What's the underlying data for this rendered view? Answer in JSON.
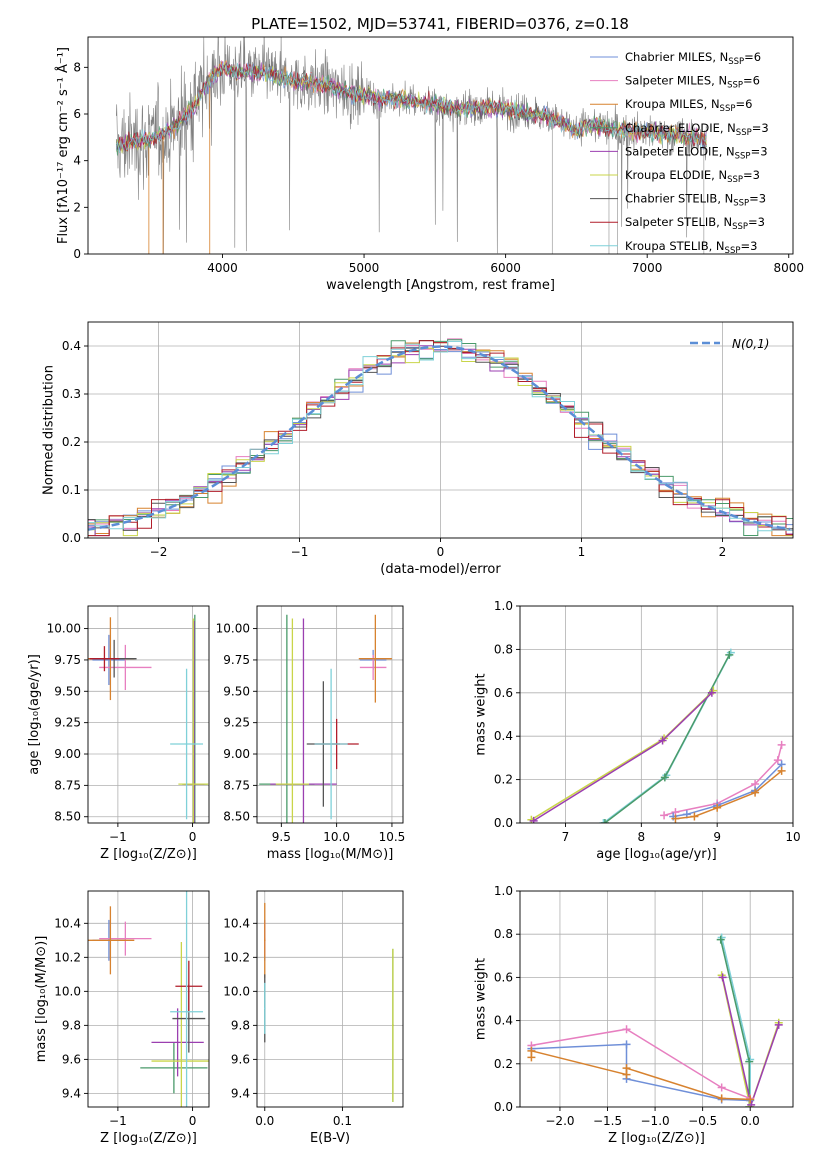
{
  "title": "PLATE=1502, MJD=53741, FIBERID=0376, z=0.18",
  "series": [
    {
      "name": "Chabrier MILES, N",
      "sub": "SSP",
      "suf": "=6",
      "color": "#6f8fd8"
    },
    {
      "name": "Salpeter MILES, N",
      "sub": "SSP",
      "suf": "=6",
      "color": "#e77fc0"
    },
    {
      "name": "Kroupa MILES, N",
      "sub": "SSP",
      "suf": "=6",
      "color": "#d7822f"
    },
    {
      "name": "Chabrier ELODIE, N",
      "sub": "SSP",
      "suf": "=3",
      "color": "#4a9a6a"
    },
    {
      "name": "Salpeter ELODIE, N",
      "sub": "SSP",
      "suf": "=3",
      "color": "#9b3fb0"
    },
    {
      "name": "Kroupa ELODIE, N",
      "sub": "SSP",
      "suf": "=3",
      "color": "#c9d54a"
    },
    {
      "name": "Chabrier STELIB, N",
      "sub": "SSP",
      "suf": "=3",
      "color": "#555555"
    },
    {
      "name": "Salpeter STELIB, N",
      "sub": "SSP",
      "suf": "=3",
      "color": "#b11d2a"
    },
    {
      "name": "Kroupa STELIB, N",
      "sub": "SSP",
      "suf": "=3",
      "color": "#7fd0d8"
    }
  ],
  "chart_data": [
    {
      "id": "spectrum",
      "type": "line",
      "xlabel": "wavelength [Angstrom, rest frame]",
      "ylabel": "Flux [fλ10⁻¹⁷ erg cm⁻² s⁻¹ Å⁻¹]",
      "xlim": [
        3050,
        8030
      ],
      "ylim": [
        0,
        9.3
      ],
      "xticks": [
        4000,
        5000,
        6000,
        7000,
        8000
      ],
      "yticks": [
        0,
        2,
        4,
        6,
        8
      ],
      "data_color": "#808080",
      "data_range": [
        3250,
        7420
      ],
      "continuum": {
        "x": [
          3250,
          3350,
          3500,
          3650,
          3800,
          3900,
          4000,
          4100,
          4300,
          4500,
          4700,
          4900,
          5100,
          5300,
          5500,
          5700,
          5900,
          6100,
          6300,
          6500,
          6600,
          6800,
          7000,
          7200,
          7400
        ],
        "y": [
          4.6,
          4.8,
          4.9,
          5.4,
          6.3,
          7.4,
          8.0,
          7.8,
          7.8,
          7.4,
          7.3,
          6.9,
          6.7,
          6.6,
          6.4,
          6.2,
          6.3,
          6.1,
          5.9,
          5.3,
          5.6,
          5.3,
          5.2,
          5.1,
          4.9
        ]
      },
      "grid": false,
      "legend": "top-right"
    },
    {
      "id": "residuals",
      "type": "histogram",
      "xlabel": "(data-model)/error",
      "ylabel": "Normed distribution",
      "xlim": [
        -2.5,
        2.5
      ],
      "ylim": [
        0,
        0.45
      ],
      "xticks": [
        -2,
        -1,
        0,
        1,
        2
      ],
      "yticks": [
        0.0,
        0.1,
        0.2,
        0.3,
        0.4
      ],
      "bin_width": 0.1,
      "gaussian_label": "N(0,1)",
      "gaussian_color": "#5b8ed6",
      "grid": true,
      "legend": "top-right"
    },
    {
      "id": "age_vs_Z",
      "type": "errorbar",
      "xlabel": "Z [log₁₀(Z/Z⊙)]",
      "ylabel": "age  [log₁₀(age/yr)]",
      "xlim": [
        -1.4,
        0.22
      ],
      "ylim": [
        8.45,
        10.18
      ],
      "xticks": [
        -1,
        0
      ],
      "yticks": [
        8.5,
        8.75,
        9.0,
        9.25,
        9.5,
        9.75,
        10.0
      ],
      "points": [
        {
          "s": 0,
          "x": -1.12,
          "y": 9.75,
          "dx": 0.22,
          "dy": 0.2
        },
        {
          "s": 1,
          "x": -0.9,
          "y": 9.69,
          "dx": 0.35,
          "dy": 0.18
        },
        {
          "s": 2,
          "x": -1.1,
          "y": 9.76,
          "dx": 0.32,
          "dy": 0.33
        },
        {
          "s": 3,
          "x": 0.03,
          "y": 8.76,
          "dx": 0.17,
          "dy": 1.35
        },
        {
          "s": 4,
          "x": 0.02,
          "y": 8.76,
          "dx": 0.14,
          "dy": 1.3
        },
        {
          "s": 5,
          "x": 0.01,
          "y": 8.76,
          "dx": 0.2,
          "dy": 1.32
        },
        {
          "s": 6,
          "x": -1.05,
          "y": 9.76,
          "dx": 0.3,
          "dy": 0.15
        },
        {
          "s": 7,
          "x": -1.18,
          "y": 9.76,
          "dx": 0.2,
          "dy": 0.1
        },
        {
          "s": 8,
          "x": -0.08,
          "y": 9.08,
          "dx": 0.22,
          "dy": 0.6
        }
      ],
      "grid": true
    },
    {
      "id": "age_vs_mass",
      "type": "errorbar",
      "xlabel": "mass [log₁₀(M/M⊙)]",
      "ylabel": "",
      "xlim": [
        9.28,
        10.6
      ],
      "ylim": [
        8.45,
        10.18
      ],
      "xticks": [
        9.5,
        10.0,
        10.5
      ],
      "yticks": [
        8.5,
        8.75,
        9.0,
        9.25,
        9.5,
        9.75,
        10.0
      ],
      "points": [
        {
          "s": 0,
          "x": 10.33,
          "y": 9.75,
          "dx": 0.12,
          "dy": 0.08
        },
        {
          "s": 1,
          "x": 10.33,
          "y": 9.69,
          "dx": 0.12,
          "dy": 0.1
        },
        {
          "s": 2,
          "x": 10.35,
          "y": 9.76,
          "dx": 0.15,
          "dy": 0.35
        },
        {
          "s": 3,
          "x": 9.55,
          "y": 8.76,
          "dx": 0.25,
          "dy": 1.35
        },
        {
          "s": 4,
          "x": 9.7,
          "y": 8.76,
          "dx": 0.3,
          "dy": 1.32
        },
        {
          "s": 5,
          "x": 9.6,
          "y": 8.76,
          "dx": 0.15,
          "dy": 1.32
        },
        {
          "s": 6,
          "x": 9.88,
          "y": 9.08,
          "dx": 0.15,
          "dy": 0.5
        },
        {
          "s": 7,
          "x": 10.0,
          "y": 9.08,
          "dx": 0.2,
          "dy": 0.2
        },
        {
          "s": 8,
          "x": 9.95,
          "y": 9.08,
          "dx": 0.15,
          "dy": 0.6
        }
      ],
      "grid": true
    },
    {
      "id": "weight_vs_age",
      "type": "line",
      "xlabel": "age  [log₁₀(age/yr)]",
      "ylabel": "mass weight",
      "xlim": [
        6.4,
        10.0
      ],
      "ylim": [
        0,
        1.0
      ],
      "xticks": [
        7,
        8,
        9,
        10
      ],
      "yticks": [
        0.0,
        0.2,
        0.4,
        0.6,
        0.8,
        1.0
      ],
      "lines": [
        {
          "s": 8,
          "x": [
            7.5,
            8.33,
            9.18
          ],
          "y": [
            0.0,
            0.22,
            0.785
          ]
        },
        {
          "s": 3,
          "x": [
            7.52,
            8.31,
            9.16
          ],
          "y": [
            0.0,
            0.21,
            0.775
          ]
        },
        {
          "s": 5,
          "x": [
            6.55,
            8.3,
            8.95
          ],
          "y": [
            0.015,
            0.39,
            0.61
          ]
        },
        {
          "s": 4,
          "x": [
            6.58,
            8.28,
            8.93
          ],
          "y": [
            0.01,
            0.38,
            0.6
          ]
        },
        {
          "s": 1,
          "x": [
            8.3,
            8.45,
            9.0,
            9.5,
            9.8,
            9.85
          ],
          "y": [
            0.035,
            0.05,
            0.09,
            0.18,
            0.29,
            0.36
          ]
        },
        {
          "s": 0,
          "x": [
            8.42,
            8.6,
            9.0,
            9.5,
            9.85
          ],
          "y": [
            0.03,
            0.04,
            0.08,
            0.15,
            0.27
          ]
        },
        {
          "s": 2,
          "x": [
            8.45,
            8.7,
            9.0,
            9.5,
            9.85
          ],
          "y": [
            0.02,
            0.03,
            0.07,
            0.14,
            0.24
          ]
        }
      ],
      "grid": true
    },
    {
      "id": "mass_vs_Z",
      "type": "errorbar",
      "xlabel": "Z [log₁₀(Z/Z⊙)]",
      "ylabel": "mass [log₁₀(M/M⊙)]",
      "xlim": [
        -1.4,
        0.22
      ],
      "ylim": [
        9.32,
        10.59
      ],
      "xticks": [
        -1,
        0
      ],
      "yticks": [
        9.4,
        9.6,
        9.8,
        10.0,
        10.2,
        10.4
      ],
      "points": [
        {
          "s": 0,
          "x": -1.12,
          "y": 10.3,
          "dx": 0.22,
          "dy": 0.12
        },
        {
          "s": 1,
          "x": -0.9,
          "y": 10.31,
          "dx": 0.35,
          "dy": 0.1
        },
        {
          "s": 2,
          "x": -1.1,
          "y": 10.3,
          "dx": 0.32,
          "dy": 0.2
        },
        {
          "s": 3,
          "x": -0.25,
          "y": 9.55,
          "dx": 0.45,
          "dy": 0.15
        },
        {
          "s": 4,
          "x": -0.2,
          "y": 9.7,
          "dx": 0.35,
          "dy": 0.2
        },
        {
          "s": 5,
          "x": -0.15,
          "y": 9.59,
          "dx": 0.4,
          "dy": 0.7
        },
        {
          "s": 6,
          "x": -0.05,
          "y": 9.84,
          "dx": 0.22,
          "dy": 0.2
        },
        {
          "s": 7,
          "x": -0.05,
          "y": 10.03,
          "dx": 0.18,
          "dy": 0.15
        },
        {
          "s": 8,
          "x": -0.08,
          "y": 9.88,
          "dx": 0.22,
          "dy": 0.8
        }
      ],
      "grid": true
    },
    {
      "id": "mass_vs_EBV",
      "type": "errorbar",
      "xlabel": "E(B-V)",
      "ylabel": "",
      "xlim": [
        -0.01,
        0.178
      ],
      "ylim": [
        9.32,
        10.59
      ],
      "xticks": [
        0.0,
        0.1
      ],
      "yticks": [
        9.4,
        9.6,
        9.8,
        10.0,
        10.2,
        10.4
      ],
      "points": [
        {
          "s": 0,
          "x": 0.0,
          "y": 10.3,
          "dx": 0.001,
          "dy": 0.12
        },
        {
          "s": 1,
          "x": 0.0,
          "y": 10.31,
          "dx": 0.001,
          "dy": 0.1
        },
        {
          "s": 2,
          "x": 0.0,
          "y": 10.3,
          "dx": 0.001,
          "dy": 0.22
        },
        {
          "s": 3,
          "x": 0.165,
          "y": 9.8,
          "dx": 0.001,
          "dy": 0.45
        },
        {
          "s": 5,
          "x": 0.165,
          "y": 9.8,
          "dx": 0.001,
          "dy": 0.45
        },
        {
          "s": 6,
          "x": 0.0,
          "y": 9.9,
          "dx": 0.001,
          "dy": 0.2
        },
        {
          "s": 8,
          "x": 0.0,
          "y": 9.9,
          "dx": 0.001,
          "dy": 0.15
        }
      ],
      "grid": true
    },
    {
      "id": "weight_vs_Z",
      "type": "line",
      "xlabel": "Z [log₁₀(Z/Z⊙)]",
      "ylabel": "mass weight",
      "xlim": [
        -2.42,
        0.45
      ],
      "ylim": [
        0,
        1.0
      ],
      "xticks": [
        -2.0,
        -1.5,
        -1.0,
        -0.5,
        0.0
      ],
      "yticks": [
        0.0,
        0.2,
        0.4,
        0.6,
        0.8,
        1.0
      ],
      "lines": [
        {
          "s": 8,
          "x": [
            -0.3,
            0.0,
            0.0
          ],
          "y": [
            0.785,
            0.22,
            0.0
          ]
        },
        {
          "s": 3,
          "x": [
            -0.31,
            -0.01,
            -0.01
          ],
          "y": [
            0.775,
            0.21,
            0.0
          ]
        },
        {
          "s": 5,
          "x": [
            -0.3,
            0.0,
            0.3
          ],
          "y": [
            0.61,
            0.0,
            0.39
          ]
        },
        {
          "s": 4,
          "x": [
            -0.29,
            0.01,
            0.3
          ],
          "y": [
            0.6,
            0.01,
            0.38
          ]
        },
        {
          "s": 0,
          "x": [
            -2.3,
            -1.3,
            -1.3,
            -0.3,
            0.0
          ],
          "y": [
            0.27,
            0.29,
            0.13,
            0.035,
            0.03
          ]
        },
        {
          "s": 1,
          "x": [
            -2.3,
            -1.3,
            -0.3,
            0.0
          ],
          "y": [
            0.285,
            0.36,
            0.09,
            0.04
          ]
        },
        {
          "s": 2,
          "x": [
            -2.3,
            -2.3,
            -1.3,
            -1.3,
            -0.3,
            0.0
          ],
          "y": [
            0.23,
            0.26,
            0.15,
            0.18,
            0.04,
            0.035
          ]
        }
      ],
      "grid": true
    }
  ]
}
